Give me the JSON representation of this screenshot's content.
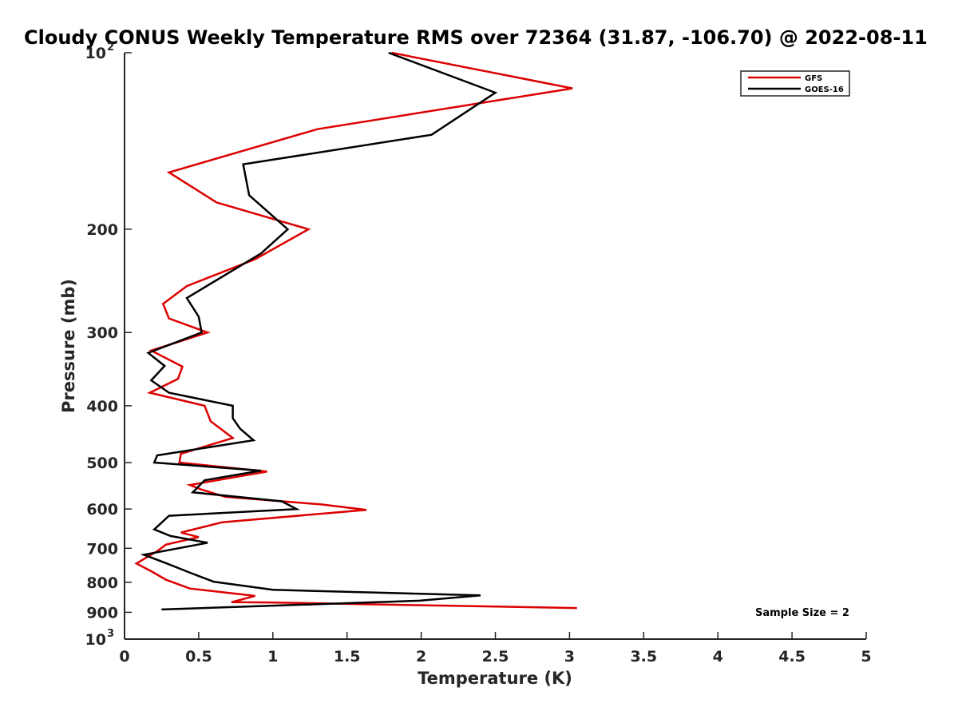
{
  "chart_data": {
    "type": "line",
    "title": "Cloudy CONUS Weekly Temperature RMS over 72364 (31.87, -106.70) @ 2022-08-11",
    "xlabel": "Temperature (K)",
    "ylabel": "Pressure (mb)",
    "xlim": [
      0,
      5
    ],
    "ylim": [
      100,
      1000
    ],
    "yscale": "log",
    "y_reversed": true,
    "grid": false,
    "legend_position": "top-right",
    "xticks": [
      0,
      0.5,
      1,
      1.5,
      2,
      2.5,
      3,
      3.5,
      4,
      4.5,
      5
    ],
    "xtick_labels": [
      "0",
      "0.5",
      "1",
      "1.5",
      "2",
      "2.5",
      "3",
      "3.5",
      "4",
      "4.5",
      "5"
    ],
    "yticks": [
      {
        "value": 100,
        "base": "10",
        "exp": "2"
      },
      {
        "value": 200,
        "label": "200"
      },
      {
        "value": 300,
        "label": "300"
      },
      {
        "value": 400,
        "label": "400"
      },
      {
        "value": 500,
        "label": "500"
      },
      {
        "value": 600,
        "label": "600"
      },
      {
        "value": 700,
        "label": "700"
      },
      {
        "value": 800,
        "label": "800"
      },
      {
        "value": 900,
        "label": "900"
      },
      {
        "value": 1000,
        "base": "10",
        "exp": "3"
      }
    ],
    "annotation": "Sample Size = 2",
    "series": [
      {
        "name": "GFS",
        "color": "#dd0000",
        "points": [
          [
            1.8,
            100
          ],
          [
            3.02,
            115
          ],
          [
            1.3,
            135
          ],
          [
            0.3,
            160
          ],
          [
            0.62,
            180
          ],
          [
            1.24,
            200
          ],
          [
            0.88,
            225
          ],
          [
            0.42,
            250
          ],
          [
            0.26,
            268
          ],
          [
            0.3,
            284
          ],
          [
            0.56,
            300
          ],
          [
            0.18,
            322
          ],
          [
            0.39,
            343
          ],
          [
            0.36,
            360
          ],
          [
            0.17,
            380
          ],
          [
            0.54,
            400
          ],
          [
            0.58,
            425
          ],
          [
            0.73,
            454
          ],
          [
            0.38,
            483
          ],
          [
            0.37,
            500
          ],
          [
            0.96,
            518
          ],
          [
            0.44,
            546
          ],
          [
            0.52,
            556
          ],
          [
            0.68,
            572
          ],
          [
            1.32,
            589
          ],
          [
            1.63,
            602
          ],
          [
            0.66,
            632
          ],
          [
            0.38,
            658
          ],
          [
            0.5,
            670
          ],
          [
            0.28,
            690
          ],
          [
            0.22,
            708
          ],
          [
            0.08,
            743
          ],
          [
            0.18,
            766
          ],
          [
            0.28,
            792
          ],
          [
            0.44,
            820
          ],
          [
            0.88,
            844
          ],
          [
            0.72,
            865
          ],
          [
            0.97,
            866
          ],
          [
            3.05,
            885
          ]
        ]
      },
      {
        "name": "GOES-16",
        "color": "#000000",
        "points": [
          [
            1.78,
            100
          ],
          [
            2.5,
            117
          ],
          [
            2.07,
            138
          ],
          [
            0.8,
            155
          ],
          [
            0.84,
            175
          ],
          [
            1.1,
            200
          ],
          [
            0.92,
            220
          ],
          [
            0.42,
            262
          ],
          [
            0.5,
            282
          ],
          [
            0.52,
            300
          ],
          [
            0.16,
            325
          ],
          [
            0.27,
            342
          ],
          [
            0.18,
            362
          ],
          [
            0.3,
            380
          ],
          [
            0.73,
            400
          ],
          [
            0.73,
            420
          ],
          [
            0.78,
            438
          ],
          [
            0.87,
            458
          ],
          [
            0.22,
            486
          ],
          [
            0.2,
            500
          ],
          [
            0.92,
            516
          ],
          [
            0.54,
            536
          ],
          [
            0.46,
            562
          ],
          [
            1.06,
            582
          ],
          [
            1.16,
            600
          ],
          [
            0.3,
            616
          ],
          [
            0.2,
            650
          ],
          [
            0.31,
            667
          ],
          [
            0.56,
            685
          ],
          [
            0.13,
            718
          ],
          [
            0.28,
            742
          ],
          [
            0.45,
            772
          ],
          [
            0.6,
            798
          ],
          [
            1.0,
            824
          ],
          [
            2.4,
            842
          ],
          [
            1.99,
            860
          ],
          [
            0.25,
            890
          ]
        ]
      }
    ]
  }
}
